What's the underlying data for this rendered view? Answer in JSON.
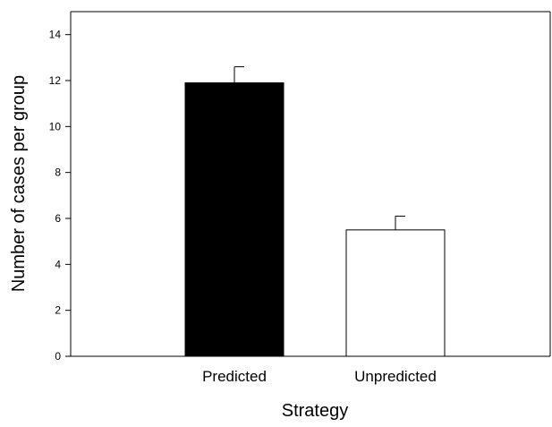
{
  "chart_data": {
    "type": "bar",
    "title": "",
    "xlabel": "Strategy",
    "ylabel": "Number of cases per group",
    "categories": [
      "Predicted",
      "Unpredicted"
    ],
    "values": [
      11.9,
      5.5
    ],
    "error_bars": [
      0.7,
      0.6
    ],
    "bar_fill_colors": [
      "#000000",
      "#ffffff"
    ],
    "bar_stroke_color": "#000000",
    "ylim": [
      0,
      15
    ],
    "yticks": [
      0,
      2,
      4,
      6,
      8,
      10,
      12,
      14
    ],
    "grid": false,
    "legend": "none",
    "frame": "top-and-right-axes-box"
  }
}
